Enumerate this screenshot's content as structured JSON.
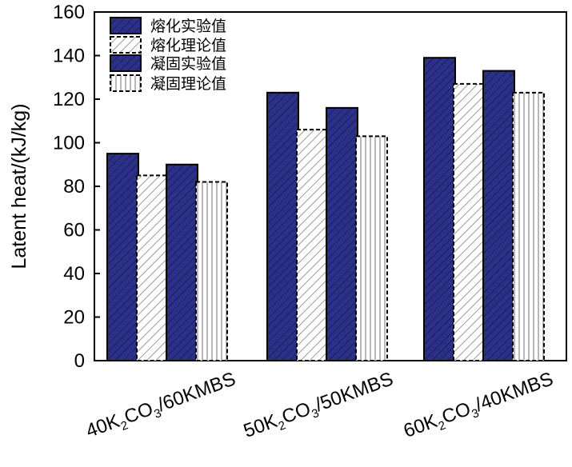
{
  "chart_data": {
    "type": "bar",
    "title": "",
    "xlabel": "",
    "ylabel": "Latent heat/(kJ/kg)",
    "ylim": [
      0,
      160
    ],
    "yticks": [
      0,
      20,
      40,
      60,
      80,
      100,
      120,
      140,
      160
    ],
    "categories": [
      {
        "p1": "40K",
        "s1": "2",
        "p2": "CO",
        "s2": "3",
        "p3": "/60KMBS"
      },
      {
        "p1": "50K",
        "s1": "2",
        "p2": "CO",
        "s2": "3",
        "p3": "/50KMBS"
      },
      {
        "p1": "60K",
        "s1": "2",
        "p2": "CO",
        "s2": "3",
        "p3": "/40KMBS"
      }
    ],
    "series": [
      {
        "name": "熔化实验值",
        "values": [
          95,
          123,
          139
        ],
        "style": "solid-hatched",
        "color": "#2b2f86"
      },
      {
        "name": "熔化理论值",
        "values": [
          85,
          106,
          127
        ],
        "style": "diagonal-dashed",
        "color": "#9a9a9a"
      },
      {
        "name": "凝固实验值",
        "values": [
          90,
          116,
          133
        ],
        "style": "solid-hatched",
        "color": "#2b2f86"
      },
      {
        "name": "凝固理论值",
        "values": [
          82,
          103,
          123
        ],
        "style": "vertical-dashed",
        "color": "#9a9a9a"
      }
    ],
    "legend_position": "top-left",
    "grid": false
  }
}
